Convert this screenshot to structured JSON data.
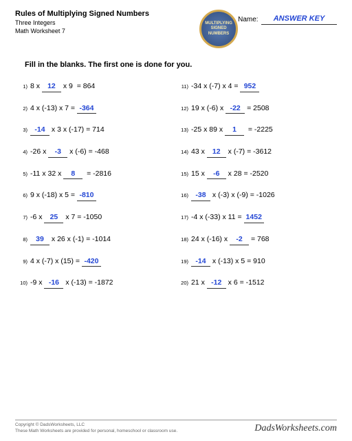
{
  "header": {
    "title": "Rules of Multiplying Signed Numbers",
    "subtitle": "Three Integers",
    "worksheet": "Math Worksheet 7",
    "badge_l1": "MULTIPLYING",
    "badge_l2": "SIGNED",
    "badge_l3": "NUMBERS",
    "name_label": "Name:",
    "answer_key": "ANSWER KEY"
  },
  "instructions": "Fill in the blanks.  The first one is done for you.",
  "colors": {
    "answer": "#2346d4",
    "text": "#000000",
    "line": "#333333"
  },
  "left": [
    {
      "n": "1)",
      "pre": "8 x ",
      "ans": "12",
      "post": " x 9  = 864"
    },
    {
      "n": "2)",
      "pre": "4 x (-13) x 7 = ",
      "ans": "-364",
      "post": ""
    },
    {
      "n": "3)",
      "pre": "",
      "ans": "-14",
      "post": " x 3 x (-17) = 714"
    },
    {
      "n": "4)",
      "pre": "-26 x ",
      "ans": "-3",
      "post": " x (-6) = -468"
    },
    {
      "n": "5)",
      "pre": "-11 x 32 x ",
      "ans": "8",
      "post": "  = -2816"
    },
    {
      "n": "6)",
      "pre": "9 x (-18) x 5 = ",
      "ans": "-810",
      "post": ""
    },
    {
      "n": "7)",
      "pre": "-6 x ",
      "ans": "25",
      "post": " x 7 = -1050"
    },
    {
      "n": "8)",
      "pre": "",
      "ans": "39",
      "post": " x 26 x (-1) = -1014"
    },
    {
      "n": "9)",
      "pre": "4 x (-7) x (15) = ",
      "ans": "-420",
      "post": ""
    },
    {
      "n": "10)",
      "pre": "-9 x ",
      "ans": "-16",
      "post": " x (-13) = -1872"
    }
  ],
  "right": [
    {
      "n": "11)",
      "pre": "-34 x (-7) x 4 = ",
      "ans": "952",
      "post": ""
    },
    {
      "n": "12)",
      "pre": "19 x (-6) x ",
      "ans": "-22",
      "post": " = 2508"
    },
    {
      "n": "13)",
      "pre": "-25 x 89 x ",
      "ans": "1",
      "post": "  = -2225"
    },
    {
      "n": "14)",
      "pre": "43 x ",
      "ans": "12",
      "post": " x (-7) = -3612"
    },
    {
      "n": "15)",
      "pre": "15 x ",
      "ans": "-6",
      "post": " x 28 = -2520"
    },
    {
      "n": "16)",
      "pre": "",
      "ans": "-38",
      "post": " x (-3) x (-9) = -1026"
    },
    {
      "n": "17)",
      "pre": "-4 x (-33) x 11 = ",
      "ans": "1452",
      "post": ""
    },
    {
      "n": "18)",
      "pre": "24 x (-16) x ",
      "ans": "-2",
      "post": " = 768"
    },
    {
      "n": "19)",
      "pre": "",
      "ans": "-14",
      "post": " x (-13) x 5 = 910"
    },
    {
      "n": "20)",
      "pre": "21 x ",
      "ans": "-12",
      "post": " x 6 = -1512"
    }
  ],
  "footer": {
    "copyright": "Copyright © DadsWorksheets, LLC",
    "note": "These Math Worksheets are provided for personal, homeschool or classroom use.",
    "brand": "DadsWorksheets.com"
  }
}
